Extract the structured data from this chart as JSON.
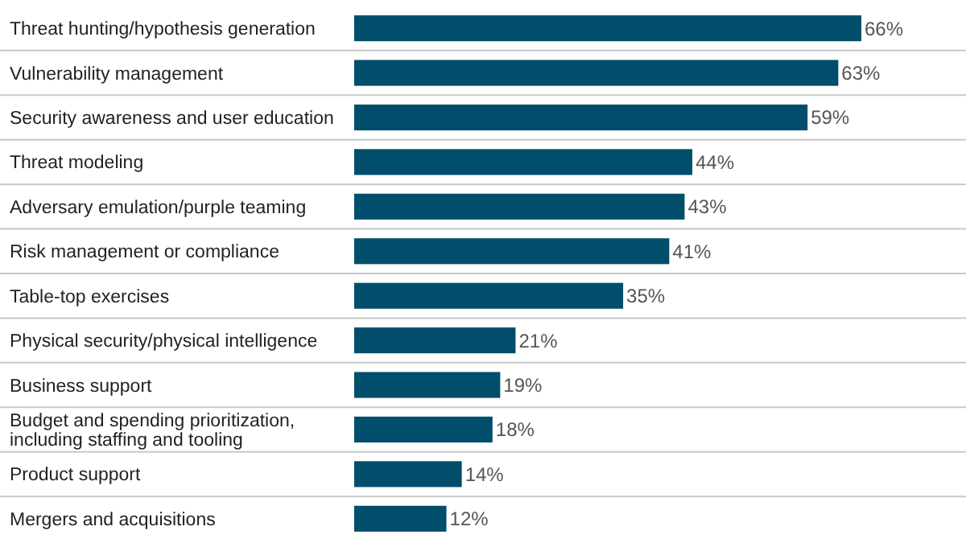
{
  "chart_data": {
    "type": "bar",
    "orientation": "horizontal",
    "categories": [
      "Threat hunting/hypothesis generation",
      "Vulnerability management",
      "Security awareness and user education",
      "Threat modeling",
      "Adversary emulation/purple teaming",
      "Risk management or compliance",
      "Table-top exercises",
      "Physical security/physical intelligence",
      "Business support",
      "Budget and spending prioritization, including staffing and tooling",
      "Product support",
      "Mergers and acquisitions"
    ],
    "values": [
      66,
      63,
      59,
      44,
      43,
      41,
      35,
      21,
      19,
      18,
      14,
      12
    ],
    "value_labels": [
      "66%",
      "63%",
      "59%",
      "44%",
      "43%",
      "41%",
      "35%",
      "21%",
      "19%",
      "18%",
      "14%",
      "12%"
    ],
    "color": "#004e6b"
  }
}
